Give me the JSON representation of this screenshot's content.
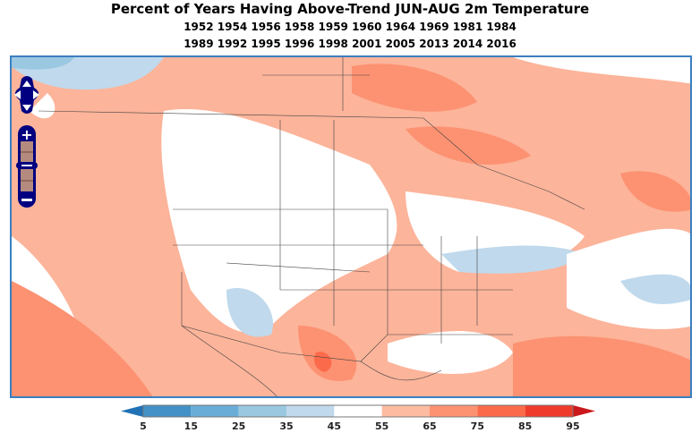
{
  "title": "Percent of Years Having Above-Trend JUN-AUG 2m Temperature",
  "years_line1": "1952 1954 1956 1958 1959 1960 1964 1969 1981 1984",
  "years_line2": "1989 1992 1995 1996 1998 2001 2005 2013 2014 2016",
  "colorbar": {
    "ticks": [
      "5",
      "15",
      "25",
      "35",
      "45",
      "55",
      "65",
      "75",
      "85",
      "95"
    ],
    "colors": [
      "#4391c6",
      "#6aaed8",
      "#9ac8e1",
      "#c0d9ec",
      "#ffffff",
      "#fdbba1",
      "#fc9272",
      "#fb6a4a",
      "#ef3b2c"
    ],
    "under_color": "#2171b5",
    "over_color": "#cb181d"
  },
  "controls": {
    "pan": "pan-control",
    "zoom_in": "+",
    "zoom_out": "−"
  }
}
